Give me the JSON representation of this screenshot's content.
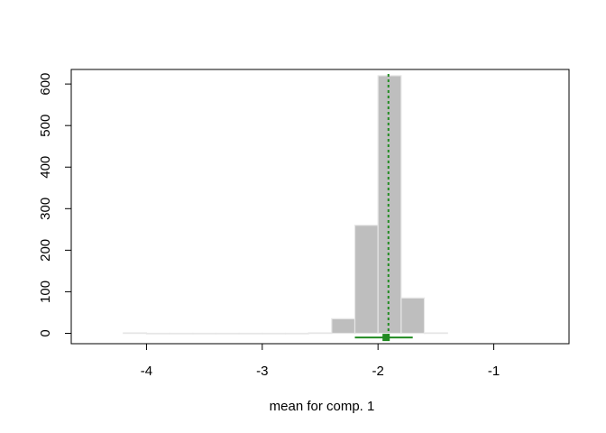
{
  "chart_data": {
    "type": "bar",
    "subtype": "histogram",
    "title": "",
    "xlabel": "mean for comp. 1",
    "ylabel": "",
    "xlim": [
      -4.65,
      -0.35
    ],
    "ylim": [
      -25,
      635
    ],
    "x_ticks": [
      -4,
      -3,
      -2,
      -1
    ],
    "x_tick_labels": [
      "-4",
      "-3",
      "-2",
      "-1"
    ],
    "y_ticks": [
      0,
      100,
      200,
      300,
      400,
      500,
      600
    ],
    "y_tick_labels": [
      "0",
      "100",
      "200",
      "300",
      "400",
      "500",
      "600"
    ],
    "bins": [
      {
        "x0": -4.2,
        "x1": -4.0,
        "count": 1
      },
      {
        "x0": -4.0,
        "x1": -3.8,
        "count": 0
      },
      {
        "x0": -3.8,
        "x1": -3.6,
        "count": 0
      },
      {
        "x0": -3.6,
        "x1": -3.4,
        "count": 0
      },
      {
        "x0": -3.4,
        "x1": -3.2,
        "count": 0
      },
      {
        "x0": -3.2,
        "x1": -3.0,
        "count": 0
      },
      {
        "x0": -3.0,
        "x1": -2.8,
        "count": 0
      },
      {
        "x0": -2.8,
        "x1": -2.6,
        "count": 0
      },
      {
        "x0": -2.6,
        "x1": -2.4,
        "count": 1
      },
      {
        "x0": -2.4,
        "x1": -2.2,
        "count": 35
      },
      {
        "x0": -2.2,
        "x1": -2.0,
        "count": 260
      },
      {
        "x0": -2.0,
        "x1": -1.8,
        "count": 620
      },
      {
        "x0": -1.8,
        "x1": -1.6,
        "count": 85
      },
      {
        "x0": -1.6,
        "x1": -1.4,
        "count": 1
      }
    ],
    "reference_line": {
      "x": -1.91,
      "style": "dotted",
      "color": "#228B22"
    },
    "point_estimate": {
      "x": -1.93,
      "y": -10,
      "ci": [
        -2.2,
        -1.7
      ],
      "color": "#228B22"
    },
    "bar_fill": "#bebebe",
    "bar_border": "#e6e6e6",
    "grid": false,
    "legend": "none"
  }
}
